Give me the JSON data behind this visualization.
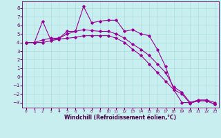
{
  "xlabel": "Windchill (Refroidissement éolien,°C)",
  "ylabel": "",
  "bg_color": "#c8eef0",
  "line_color": "#990099",
  "grid_color": "#aadddd",
  "xlim": [
    -0.5,
    23.5
  ],
  "ylim": [
    -3.6,
    8.8
  ],
  "xticks": [
    0,
    1,
    2,
    3,
    4,
    5,
    6,
    7,
    8,
    9,
    10,
    11,
    12,
    13,
    14,
    15,
    16,
    17,
    18,
    19,
    20,
    21,
    22,
    23
  ],
  "yticks": [
    -3,
    -2,
    -1,
    0,
    1,
    2,
    3,
    4,
    5,
    6,
    7,
    8
  ],
  "line1_x": [
    0,
    1,
    2,
    3,
    4,
    5,
    6,
    7,
    8,
    9,
    10,
    11,
    12,
    13,
    14,
    15,
    16,
    17,
    18,
    19,
    20,
    21,
    22,
    23
  ],
  "line1_y": [
    4.0,
    4.0,
    6.5,
    4.3,
    4.5,
    5.0,
    5.3,
    8.2,
    6.3,
    6.5,
    6.6,
    6.6,
    5.3,
    5.5,
    5.0,
    4.8,
    3.2,
    1.2,
    -1.5,
    -3.0,
    -3.0,
    -2.7,
    -2.7,
    -3.0
  ],
  "line2_x": [
    0,
    1,
    2,
    3,
    4,
    5,
    6,
    7,
    8,
    9,
    10,
    11,
    12,
    13,
    14,
    15,
    16,
    17,
    18,
    19,
    20,
    21,
    22,
    23
  ],
  "line2_y": [
    4.0,
    4.0,
    4.3,
    4.5,
    4.5,
    5.3,
    5.3,
    5.5,
    5.4,
    5.3,
    5.3,
    5.0,
    4.5,
    3.8,
    3.2,
    2.5,
    1.5,
    0.5,
    -1.2,
    -1.8,
    -3.0,
    -2.8,
    -2.8,
    -3.2
  ],
  "line3_x": [
    0,
    1,
    2,
    3,
    4,
    5,
    6,
    7,
    8,
    9,
    10,
    11,
    12,
    13,
    14,
    15,
    16,
    17,
    18,
    19,
    20,
    21,
    22,
    23
  ],
  "line3_y": [
    4.0,
    4.0,
    4.0,
    4.2,
    4.4,
    4.5,
    4.6,
    4.8,
    4.8,
    4.8,
    4.8,
    4.5,
    4.0,
    3.2,
    2.5,
    1.5,
    0.5,
    -0.5,
    -1.5,
    -2.0,
    -3.1,
    -2.8,
    -2.8,
    -3.2
  ],
  "tick_fontsize": 5,
  "xlabel_fontsize": 5.5
}
